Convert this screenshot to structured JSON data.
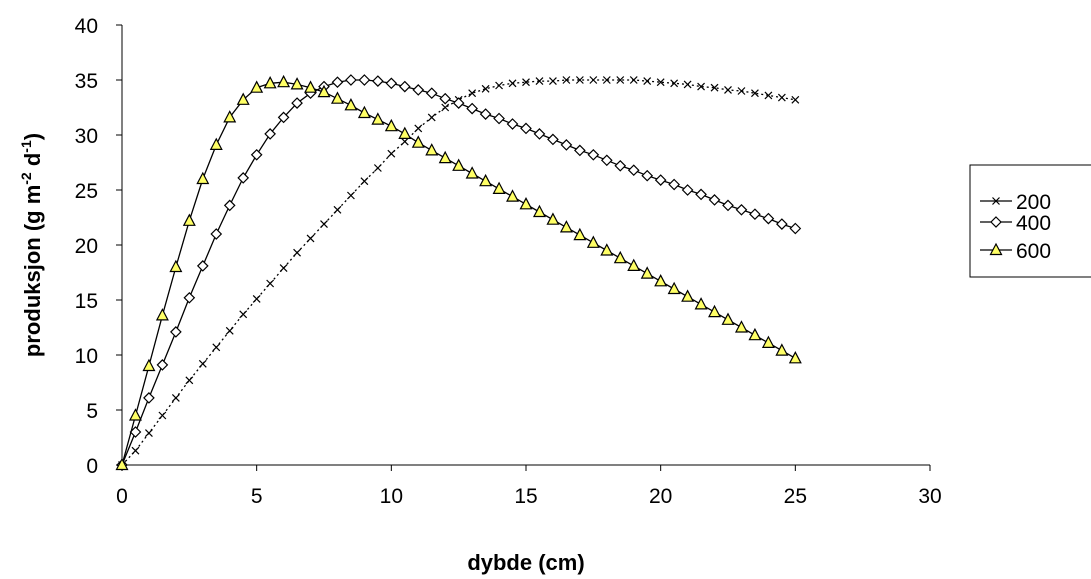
{
  "chart_data": {
    "type": "line",
    "title": "",
    "xlabel": "dybde (cm)",
    "ylabel": {
      "base": "produksjon (g m",
      "sup1": "-2",
      "mid": " d",
      "sup2": "-1",
      "end": ")"
    },
    "xlim": [
      0,
      30
    ],
    "ylim": [
      0,
      40
    ],
    "xticks": [
      "0",
      "5",
      "10",
      "15",
      "20",
      "25",
      "30"
    ],
    "yticks": [
      "0",
      "5",
      "10",
      "15",
      "20",
      "25",
      "30",
      "35",
      "40"
    ],
    "grid": false,
    "legend_position": "right",
    "series": [
      {
        "name": "200",
        "marker": "x",
        "line_style": "dotted",
        "color": "#000000",
        "x": [
          0,
          0.5,
          1,
          1.5,
          2,
          2.5,
          3,
          3.5,
          4,
          4.5,
          5,
          5.5,
          6,
          6.5,
          7,
          7.5,
          8,
          8.5,
          9,
          9.5,
          10,
          10.5,
          11,
          11.5,
          12,
          12.5,
          13,
          13.5,
          14,
          14.5,
          15,
          15.5,
          16,
          16.5,
          17,
          17.5,
          18,
          18.5,
          19,
          19.5,
          20,
          20.5,
          21,
          21.5,
          22,
          22.5,
          23,
          23.5,
          24,
          24.5,
          25
        ],
        "y": [
          0,
          1.3,
          2.9,
          4.5,
          6.1,
          7.7,
          9.2,
          10.7,
          12.2,
          13.7,
          15.1,
          16.5,
          17.9,
          19.3,
          20.6,
          21.9,
          23.2,
          24.5,
          25.8,
          27.0,
          28.3,
          29.4,
          30.6,
          31.6,
          32.5,
          33.2,
          33.8,
          34.2,
          34.5,
          34.7,
          34.8,
          34.9,
          34.9,
          35.0,
          35.0,
          35.0,
          35.0,
          35.0,
          35.0,
          34.9,
          34.8,
          34.7,
          34.6,
          34.4,
          34.3,
          34.1,
          34.0,
          33.8,
          33.6,
          33.4,
          33.2
        ]
      },
      {
        "name": "400",
        "marker": "diamond",
        "line_style": "solid",
        "color": "#000000",
        "x": [
          0,
          0.5,
          1,
          1.5,
          2,
          2.5,
          3,
          3.5,
          4,
          4.5,
          5,
          5.5,
          6,
          6.5,
          7,
          7.5,
          8,
          8.5,
          9,
          9.5,
          10,
          10.5,
          11,
          11.5,
          12,
          12.5,
          13,
          13.5,
          14,
          14.5,
          15,
          15.5,
          16,
          16.5,
          17,
          17.5,
          18,
          18.5,
          19,
          19.5,
          20,
          20.5,
          21,
          21.5,
          22,
          22.5,
          23,
          23.5,
          24,
          24.5,
          25
        ],
        "y": [
          0,
          3.0,
          6.1,
          9.1,
          12.1,
          15.2,
          18.1,
          21.0,
          23.6,
          26.1,
          28.2,
          30.1,
          31.6,
          32.9,
          33.8,
          34.4,
          34.8,
          35.0,
          35.0,
          34.9,
          34.7,
          34.4,
          34.1,
          33.8,
          33.3,
          32.9,
          32.4,
          31.9,
          31.5,
          31.0,
          30.6,
          30.1,
          29.6,
          29.1,
          28.6,
          28.2,
          27.7,
          27.2,
          26.8,
          26.3,
          25.9,
          25.5,
          25.0,
          24.6,
          24.1,
          23.6,
          23.2,
          22.8,
          22.4,
          21.9,
          21.5
        ]
      },
      {
        "name": "600",
        "marker": "triangle",
        "line_style": "solid",
        "color": "#000000",
        "marker_fill": "#ffff66",
        "x": [
          0,
          0.5,
          1,
          1.5,
          2,
          2.5,
          3,
          3.5,
          4,
          4.5,
          5,
          5.5,
          6,
          6.5,
          7,
          7.5,
          8,
          8.5,
          9,
          9.5,
          10,
          10.5,
          11,
          11.5,
          12,
          12.5,
          13,
          13.5,
          14,
          14.5,
          15,
          15.5,
          16,
          16.5,
          17,
          17.5,
          18,
          18.5,
          19,
          19.5,
          20,
          20.5,
          21,
          21.5,
          22,
          22.5,
          23,
          23.5,
          24,
          24.5,
          25
        ],
        "y": [
          0,
          4.5,
          9.0,
          13.6,
          18.0,
          22.2,
          26.0,
          29.1,
          31.6,
          33.2,
          34.3,
          34.7,
          34.8,
          34.6,
          34.3,
          33.9,
          33.3,
          32.7,
          32.0,
          31.4,
          30.8,
          30.1,
          29.3,
          28.6,
          27.9,
          27.2,
          26.5,
          25.8,
          25.1,
          24.4,
          23.7,
          23.0,
          22.3,
          21.6,
          20.9,
          20.2,
          19.5,
          18.8,
          18.1,
          17.4,
          16.7,
          16.0,
          15.3,
          14.6,
          13.9,
          13.2,
          12.5,
          11.8,
          11.1,
          10.4,
          9.7
        ]
      }
    ]
  }
}
